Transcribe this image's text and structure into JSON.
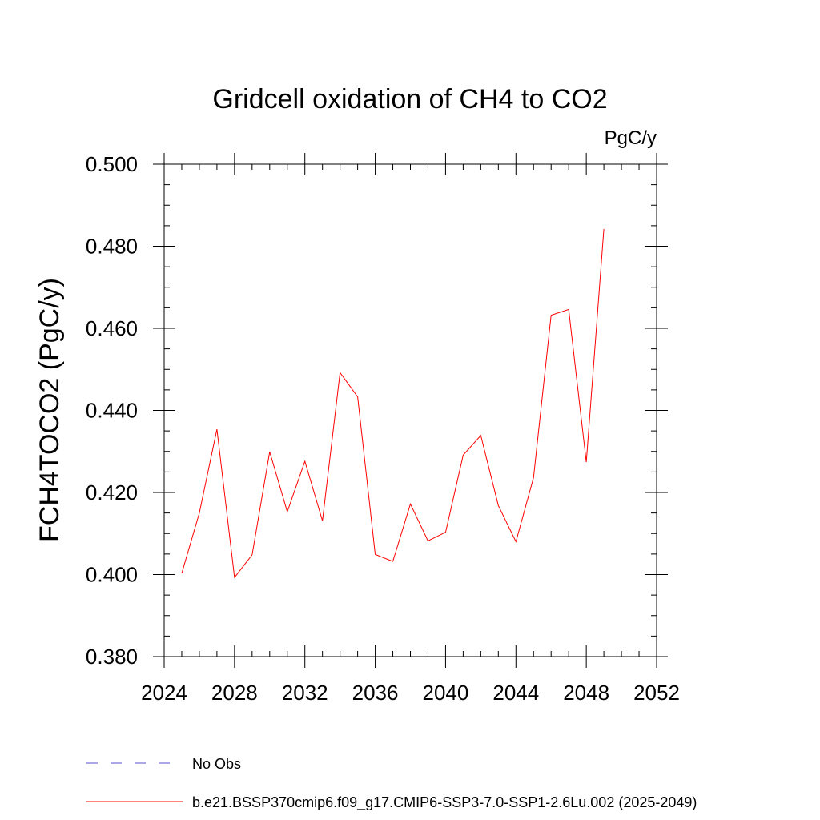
{
  "chart_data": {
    "type": "line",
    "title": "Gridcell oxidation of CH4 to CO2",
    "units": "PgC/y",
    "ylabel": "FCH4TOCO2  (PgC/y)",
    "xlabel": "",
    "xlim": [
      2024,
      2052
    ],
    "ylim": [
      0.38,
      0.5
    ],
    "xticks": [
      2024,
      2028,
      2032,
      2036,
      2040,
      2044,
      2048,
      2052
    ],
    "xtick_labels": [
      "2024",
      "2028",
      "2032",
      "2036",
      "2040",
      "2044",
      "2048",
      "2052"
    ],
    "yticks": [
      0.38,
      0.4,
      0.42,
      0.44,
      0.46,
      0.48,
      0.5
    ],
    "ytick_labels": [
      "0.380",
      "0.400",
      "0.420",
      "0.440",
      "0.460",
      "0.480",
      "0.500"
    ],
    "grid": false,
    "legend_position": "bottom-left",
    "series": [
      {
        "name": "No Obs",
        "color": "#5a4fcf",
        "dash": "dashed",
        "x": [],
        "values": []
      },
      {
        "name": "b.e21.BSSP370cmip6.f09_g17.CMIP6-SSP3-7.0-SSP1-2.6Lu.002 (2025-2049)",
        "color": "#ff0000",
        "dash": "solid",
        "x": [
          2025,
          2026,
          2027,
          2028,
          2029,
          2030,
          2031,
          2032,
          2033,
          2034,
          2035,
          2036,
          2037,
          2038,
          2039,
          2040,
          2041,
          2042,
          2043,
          2044,
          2045,
          2046,
          2047,
          2048,
          2049
        ],
        "values": [
          0.4003,
          0.415,
          0.4354,
          0.3993,
          0.4048,
          0.4299,
          0.4153,
          0.4276,
          0.4131,
          0.4492,
          0.4433,
          0.4049,
          0.4032,
          0.4172,
          0.4082,
          0.4103,
          0.4291,
          0.4339,
          0.4168,
          0.408,
          0.4236,
          0.4632,
          0.4646,
          0.4274,
          0.4842
        ]
      }
    ]
  }
}
